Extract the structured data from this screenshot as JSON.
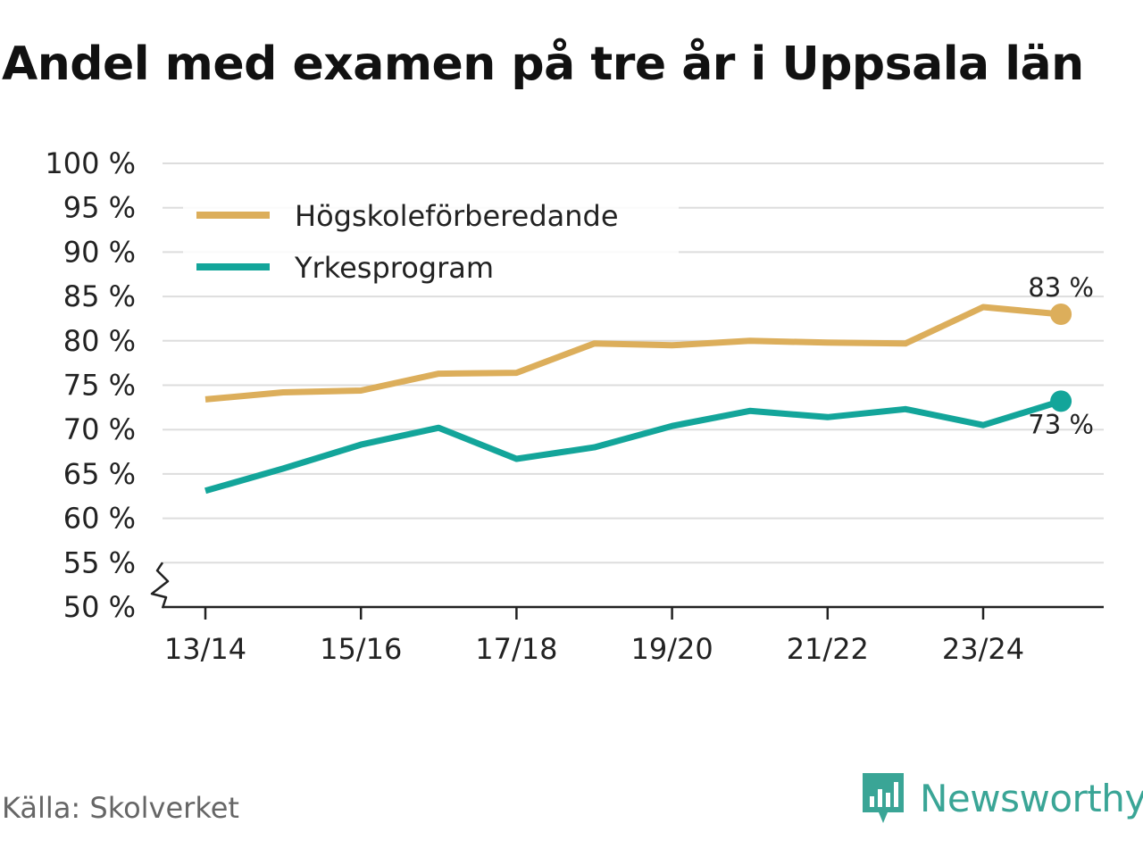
{
  "chart_data": {
    "type": "line",
    "title": "Andel med examen på tre år i Uppsala län",
    "xlabel": "",
    "ylabel": "",
    "x": [
      "13/14",
      "14/15",
      "15/16",
      "16/17",
      "17/18",
      "18/19",
      "19/20",
      "20/21",
      "21/22",
      "22/23",
      "23/24",
      "24/25"
    ],
    "x_tick_labels": [
      "13/14",
      "15/16",
      "17/18",
      "19/20",
      "21/22",
      "23/24"
    ],
    "y_tick_labels": [
      "50 %",
      "55 %",
      "60 %",
      "65 %",
      "70 %",
      "75 %",
      "80 %",
      "85 %",
      "90 %",
      "95 %",
      "100 %"
    ],
    "ylim": [
      50,
      100
    ],
    "y_axis_break": true,
    "grid": true,
    "legend_position": "top-left",
    "series": [
      {
        "name": "Högskoleförberedande",
        "color": "#dcae5b",
        "values": [
          73.4,
          74.2,
          74.4,
          76.3,
          76.4,
          79.7,
          79.5,
          80.0,
          79.8,
          79.7,
          83.8,
          83.0
        ],
        "end_label": "83 %"
      },
      {
        "name": "Yrkesprogram",
        "color": "#13a59a",
        "values": [
          63.1,
          65.6,
          68.3,
          70.2,
          66.7,
          68.0,
          70.4,
          72.1,
          71.4,
          72.3,
          70.5,
          73.2
        ],
        "end_label": "73 %"
      }
    ]
  },
  "source": "Källa: Skolverket",
  "brand": {
    "name": "Newsworthy",
    "color": "#3aa596"
  }
}
